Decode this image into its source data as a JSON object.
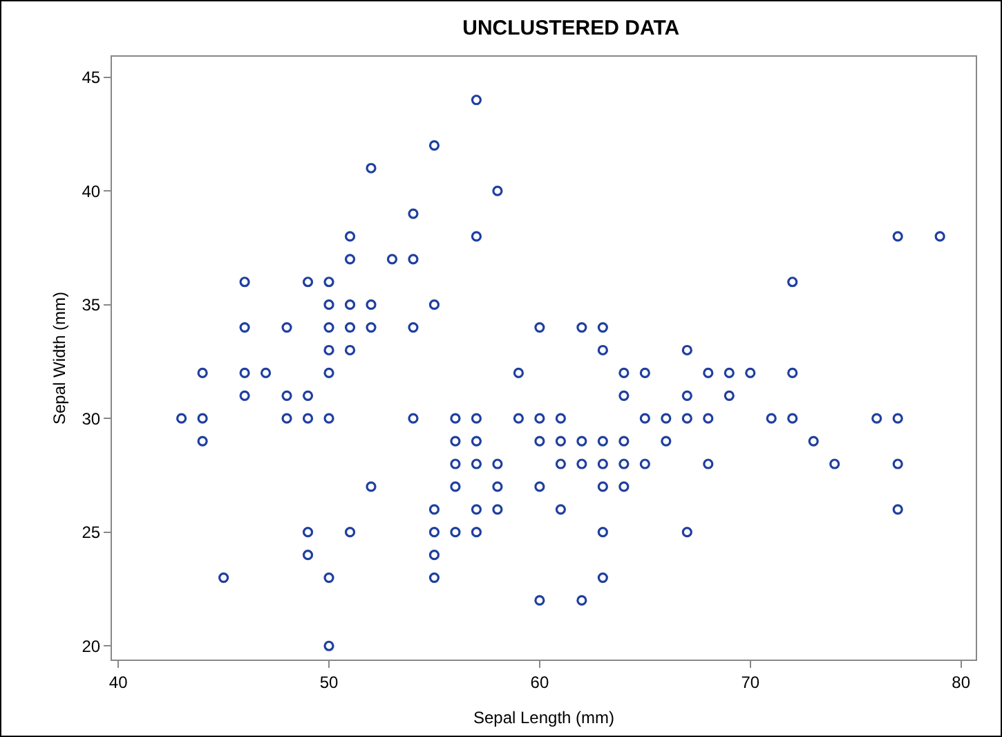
{
  "chart_data": {
    "type": "scatter",
    "title": "UNCLUSTERED DATA",
    "xlabel": "Sepal Length (mm)",
    "ylabel": "Sepal Width (mm)",
    "x": [
      43,
      44,
      44,
      44,
      45,
      46,
      46,
      46,
      46,
      47,
      48,
      48,
      48,
      49,
      49,
      49,
      49,
      49,
      50,
      50,
      50,
      50,
      50,
      50,
      50,
      50,
      51,
      51,
      51,
      51,
      51,
      51,
      52,
      52,
      52,
      52,
      53,
      54,
      54,
      54,
      54,
      55,
      55,
      55,
      55,
      55,
      55,
      56,
      56,
      56,
      56,
      56,
      57,
      57,
      57,
      57,
      57,
      57,
      57,
      58,
      58,
      58,
      58,
      59,
      59,
      60,
      60,
      60,
      60,
      60,
      61,
      61,
      61,
      61,
      62,
      62,
      62,
      62,
      63,
      63,
      63,
      63,
      63,
      63,
      63,
      64,
      64,
      64,
      64,
      64,
      65,
      65,
      65,
      66,
      66,
      67,
      67,
      67,
      67,
      68,
      68,
      68,
      69,
      69,
      70,
      71,
      72,
      72,
      72,
      73,
      74,
      76,
      77,
      77,
      77,
      77,
      79
    ],
    "values": [
      30,
      29,
      30,
      32,
      23,
      31,
      32,
      34,
      36,
      32,
      30,
      31,
      34,
      24,
      25,
      30,
      31,
      36,
      20,
      23,
      30,
      32,
      33,
      34,
      35,
      36,
      25,
      33,
      34,
      35,
      37,
      38,
      27,
      34,
      35,
      41,
      37,
      30,
      34,
      37,
      39,
      23,
      24,
      25,
      26,
      35,
      42,
      25,
      27,
      28,
      29,
      30,
      25,
      26,
      28,
      29,
      30,
      38,
      44,
      26,
      27,
      28,
      40,
      30,
      32,
      22,
      27,
      29,
      30,
      34,
      26,
      28,
      29,
      30,
      22,
      28,
      29,
      34,
      23,
      25,
      27,
      28,
      29,
      33,
      34,
      27,
      28,
      29,
      31,
      32,
      28,
      30,
      32,
      29,
      30,
      25,
      30,
      31,
      33,
      28,
      30,
      32,
      31,
      32,
      32,
      30,
      30,
      32,
      36,
      29,
      28,
      30,
      26,
      28,
      30,
      38,
      38
    ],
    "color": "#1f3f9f",
    "marker": "circle",
    "grid": false,
    "xlim": [
      39.7,
      80.7
    ],
    "xticks": [
      40,
      50,
      60,
      70,
      80
    ],
    "ylim": [
      19.4,
      45.9
    ],
    "yticks": [
      20,
      25,
      30,
      35,
      40,
      45
    ]
  }
}
